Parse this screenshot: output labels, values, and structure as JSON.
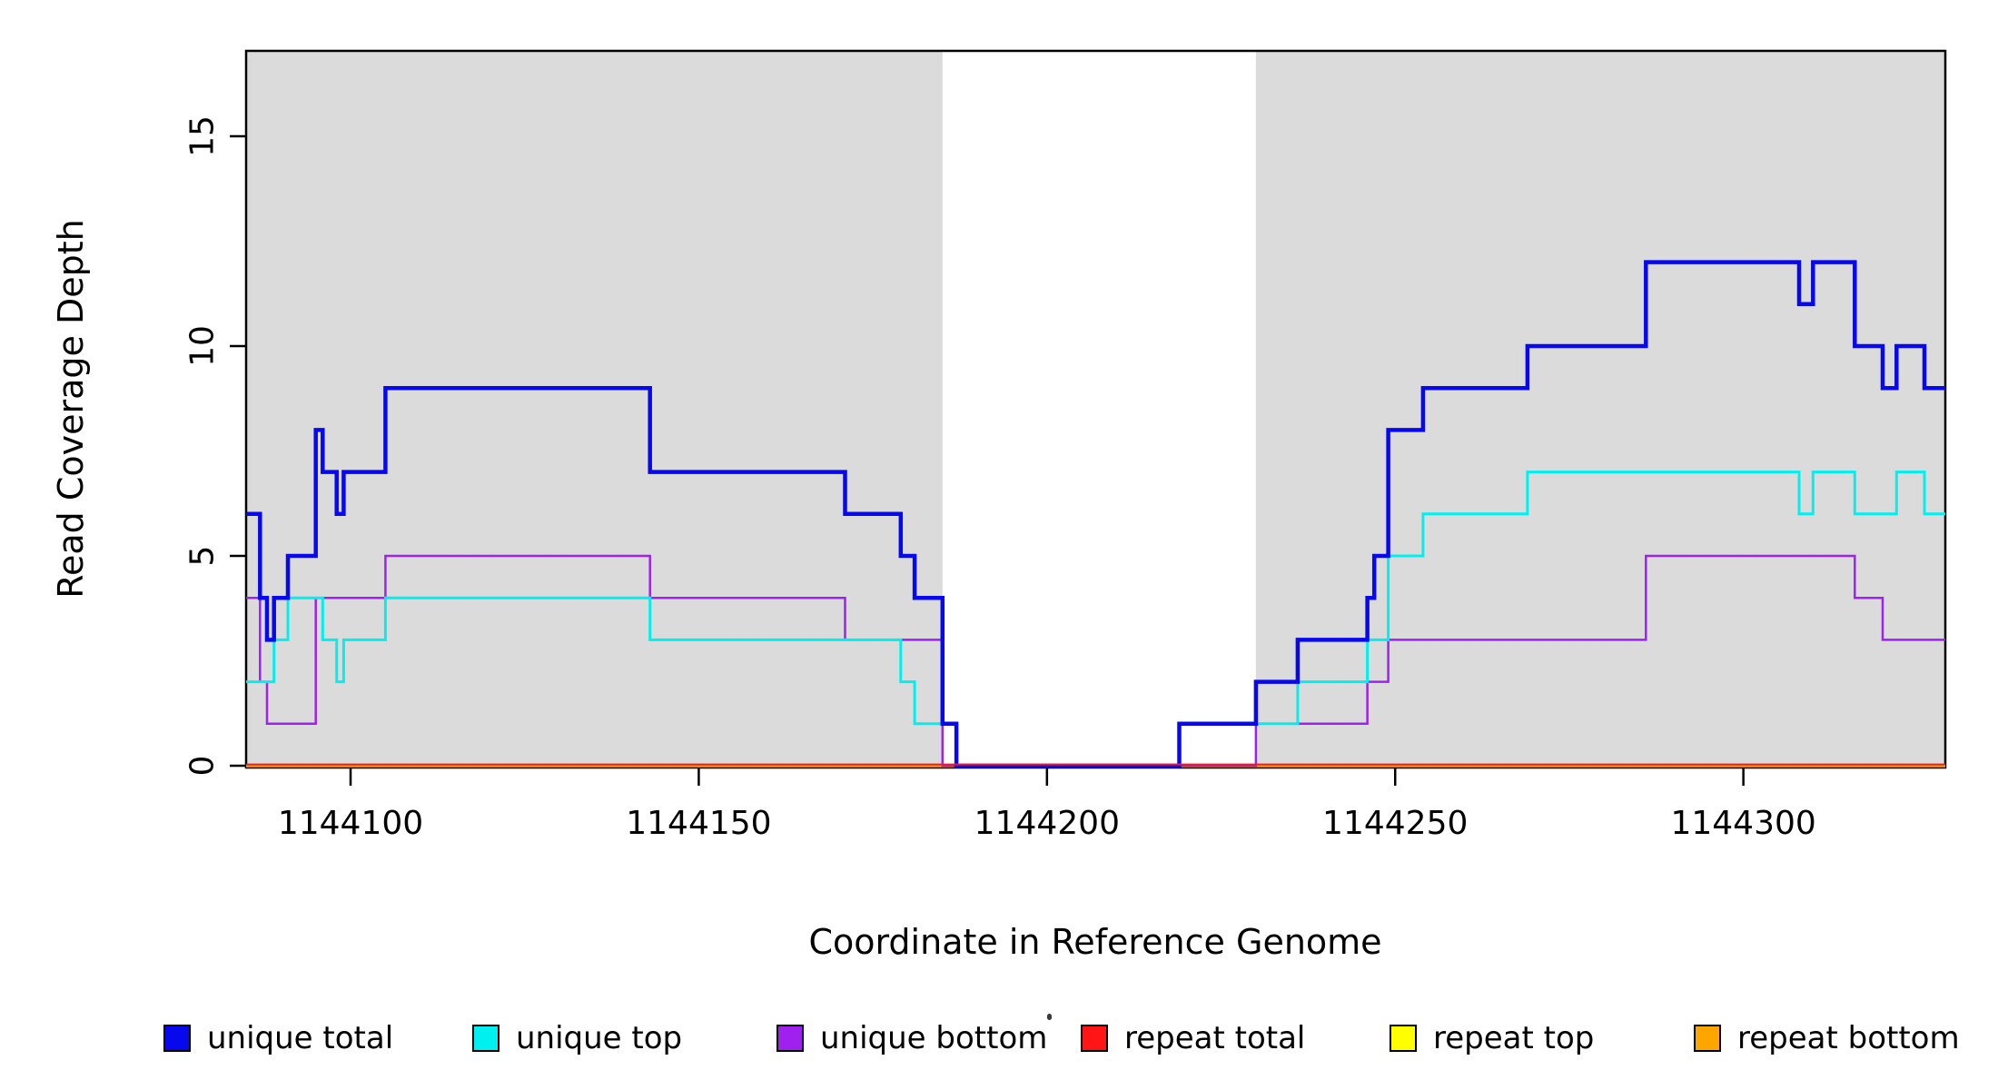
{
  "figure": {
    "ylabel": "Read Coverage Depth",
    "xlabel": "Coordinate in Reference Genome"
  },
  "chart_data": {
    "type": "line",
    "subtype": "step-post",
    "title": "",
    "xlabel": "Coordinate in Reference Genome",
    "ylabel": "Read Coverage Depth",
    "xlim": [
      1144085,
      1144329
    ],
    "ylim": [
      0,
      17
    ],
    "x_ticks": [
      1144100,
      1144150,
      1144200,
      1144250,
      1144300
    ],
    "y_ticks": [
      0,
      5,
      10,
      15
    ],
    "grid": false,
    "legend_position": "bottom",
    "x_end": 1144329,
    "shaded_regions": [
      {
        "x0": 1144085,
        "x1": 1144185,
        "color": "#DBDBDB"
      },
      {
        "x0": 1144230,
        "x1": 1144329,
        "color": "#DBDBDB"
      }
    ],
    "draw_order": [
      "repeat top",
      "repeat bottom",
      "unique bottom",
      "unique top",
      "unique total",
      "repeat total"
    ],
    "series": [
      {
        "name": "unique total",
        "color": "#0808EE",
        "linewidth": 4.5,
        "steps": [
          [
            1144085,
            6
          ],
          [
            1144087,
            4
          ],
          [
            1144088,
            3
          ],
          [
            1144089,
            4
          ],
          [
            1144091,
            5
          ],
          [
            1144095,
            8
          ],
          [
            1144096,
            7
          ],
          [
            1144098,
            6
          ],
          [
            1144099,
            7
          ],
          [
            1144105,
            9
          ],
          [
            1144143,
            7
          ],
          [
            1144171,
            6
          ],
          [
            1144179,
            5
          ],
          [
            1144181,
            4
          ],
          [
            1144185,
            1
          ],
          [
            1144187,
            0
          ],
          [
            1144219,
            1
          ],
          [
            1144230,
            2
          ],
          [
            1144236,
            3
          ],
          [
            1144246,
            4
          ],
          [
            1144247,
            5
          ],
          [
            1144249,
            8
          ],
          [
            1144254,
            9
          ],
          [
            1144269,
            10
          ],
          [
            1144286,
            12
          ],
          [
            1144308,
            11
          ],
          [
            1144310,
            12
          ],
          [
            1144316,
            10
          ],
          [
            1144320,
            9
          ],
          [
            1144322,
            10
          ],
          [
            1144326,
            9
          ]
        ]
      },
      {
        "name": "unique top",
        "color": "#00F0F0",
        "linewidth": 3,
        "steps": [
          [
            1144085,
            2
          ],
          [
            1144089,
            3
          ],
          [
            1144091,
            4
          ],
          [
            1144096,
            3
          ],
          [
            1144098,
            2
          ],
          [
            1144099,
            3
          ],
          [
            1144105,
            4
          ],
          [
            1144143,
            3
          ],
          [
            1144179,
            2
          ],
          [
            1144181,
            1
          ],
          [
            1144187,
            0
          ],
          [
            1144219,
            1
          ],
          [
            1144236,
            2
          ],
          [
            1144246,
            3
          ],
          [
            1144249,
            5
          ],
          [
            1144254,
            6
          ],
          [
            1144269,
            7
          ],
          [
            1144308,
            6
          ],
          [
            1144310,
            7
          ],
          [
            1144316,
            6
          ],
          [
            1144322,
            7
          ],
          [
            1144326,
            6
          ]
        ]
      },
      {
        "name": "unique bottom",
        "color": "#A020F0",
        "linewidth": 2.5,
        "steps": [
          [
            1144085,
            4
          ],
          [
            1144087,
            2
          ],
          [
            1144088,
            1
          ],
          [
            1144095,
            4
          ],
          [
            1144105,
            5
          ],
          [
            1144143,
            4
          ],
          [
            1144171,
            3
          ],
          [
            1144185,
            0
          ],
          [
            1144230,
            1
          ],
          [
            1144246,
            2
          ],
          [
            1144249,
            3
          ],
          [
            1144286,
            5
          ],
          [
            1144316,
            4
          ],
          [
            1144320,
            3
          ]
        ]
      },
      {
        "name": "repeat total",
        "color": "#FF1515",
        "linewidth": 2,
        "steps": [
          [
            1144085,
            0
          ]
        ]
      },
      {
        "name": "repeat top",
        "color": "#FFFF00",
        "linewidth": 3,
        "steps": [
          [
            1144085,
            0
          ]
        ]
      },
      {
        "name": "repeat bottom",
        "color": "#FFA500",
        "linewidth": 3.5,
        "steps": [
          [
            1144085,
            0
          ]
        ]
      }
    ]
  },
  "legend": {
    "items": [
      {
        "label": "unique total",
        "color": "#0808EE"
      },
      {
        "label": "unique top",
        "color": "#00F0F0"
      },
      {
        "label": "unique bottom",
        "color": "#A020F0"
      },
      {
        "label": "repeat total",
        "color": "#FF1515"
      },
      {
        "label": "repeat top",
        "color": "#FFFF00"
      },
      {
        "label": "repeat bottom",
        "color": "#FFA500"
      }
    ]
  }
}
